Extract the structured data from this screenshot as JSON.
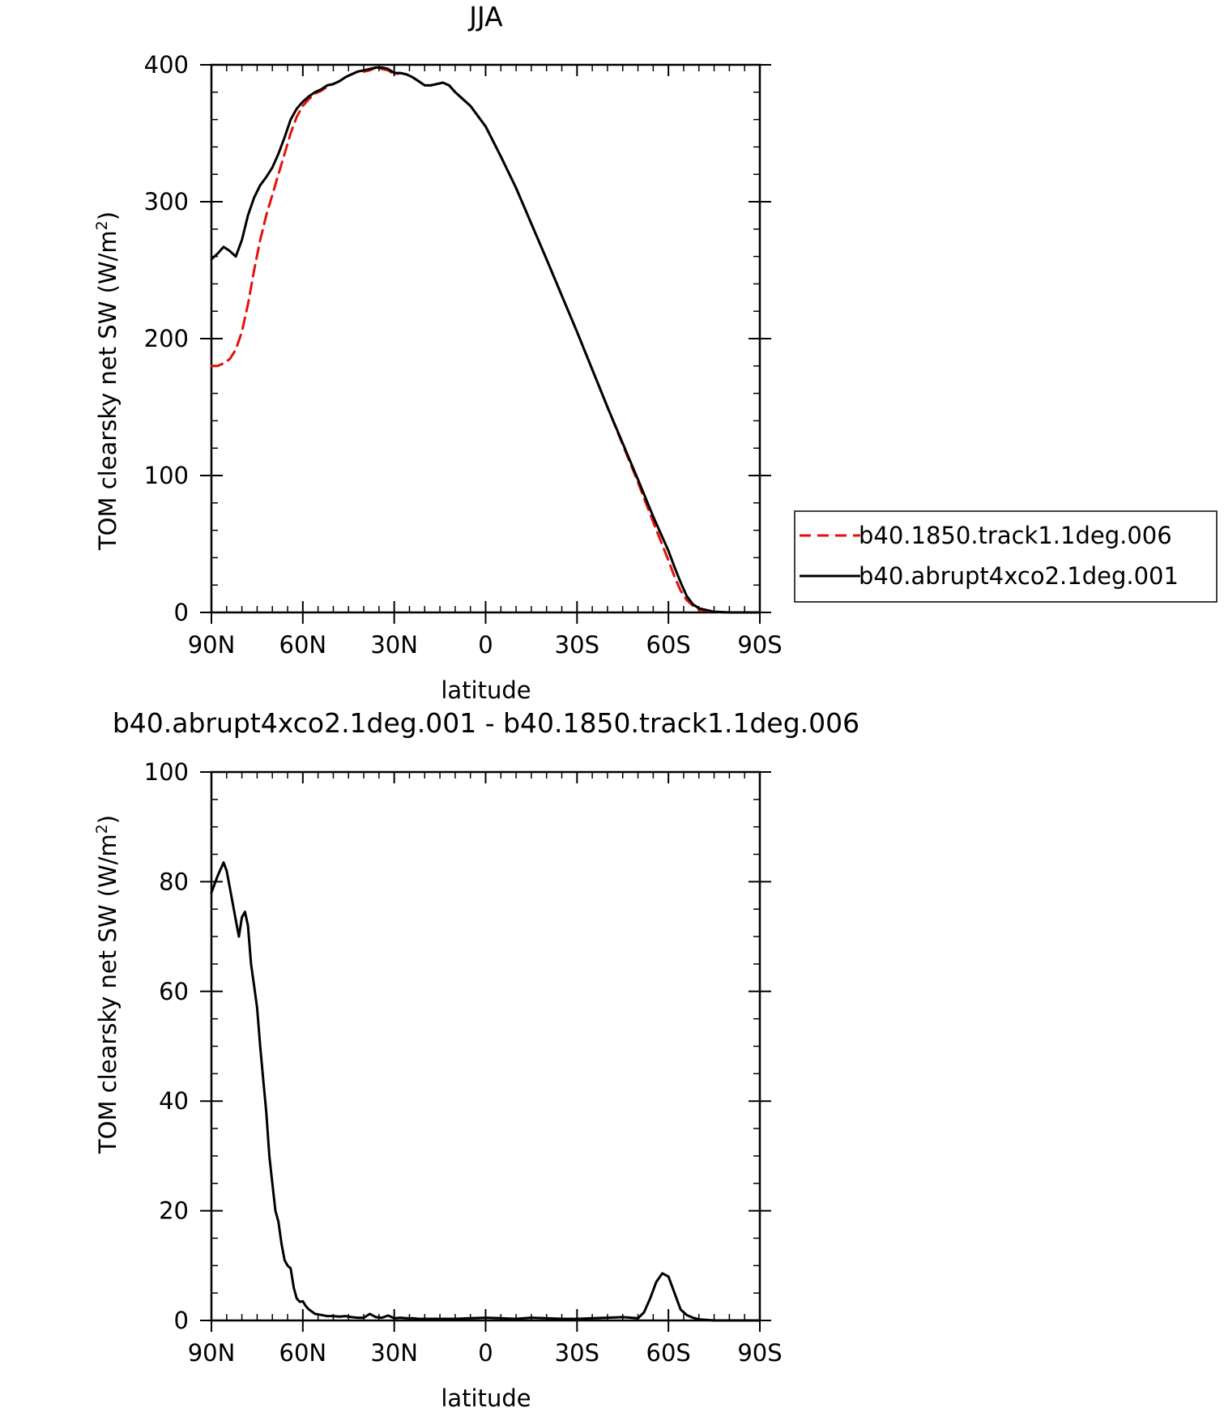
{
  "chart_data": [
    {
      "type": "line",
      "title": "JJA",
      "xlabel": "latitude",
      "ylabel_prefix": "TOM clearsky net SW (W/m",
      "ylabel_sup": "2",
      "ylabel_suffix": ")",
      "xlim": [
        90,
        -90
      ],
      "ylim": [
        0,
        400
      ],
      "xticks": [
        90,
        60,
        30,
        0,
        -30,
        -60,
        -90
      ],
      "xtick_labels": [
        "90N",
        "60N",
        "30N",
        "0",
        "30S",
        "60S",
        "90S"
      ],
      "yticks": [
        0,
        100,
        200,
        300,
        400
      ],
      "ytick_labels": [
        "0",
        "100",
        "200",
        "300",
        "400"
      ],
      "legend": "right, outside plot",
      "grid": false,
      "series": [
        {
          "name": "b40.1850.track1.1deg.006",
          "color": "#e3120b",
          "style": "dashed",
          "x": [
            90,
            88,
            86,
            84,
            82,
            80,
            78,
            76,
            74,
            72,
            70,
            68,
            66,
            64,
            62,
            60,
            58,
            56,
            54,
            52,
            50,
            48,
            46,
            44,
            42,
            40,
            38,
            36,
            34,
            32,
            30,
            28,
            26,
            24,
            22,
            20,
            18,
            16,
            14,
            12,
            10,
            5,
            0,
            -5,
            -10,
            -20,
            -30,
            -40,
            -50,
            -55,
            -60,
            -62,
            -64,
            -66,
            -68,
            -70,
            -75,
            -80,
            -85,
            -90
          ],
          "y": [
            180,
            180,
            182,
            185,
            192,
            205,
            225,
            250,
            272,
            290,
            305,
            320,
            335,
            350,
            362,
            370,
            375,
            379,
            381,
            384,
            386,
            388,
            391,
            393,
            395,
            395,
            396,
            398,
            397,
            396,
            393,
            394,
            393,
            391,
            388,
            385,
            385,
            386,
            387,
            385,
            380,
            370,
            355,
            333,
            310,
            258,
            205,
            150,
            95,
            66,
            38,
            26,
            16,
            9,
            5,
            2,
            0.5,
            0,
            0,
            0
          ]
        },
        {
          "name": "b40.abrupt4xco2.1deg.001",
          "color": "#000000",
          "style": "solid",
          "x": [
            90,
            88,
            86,
            84,
            82,
            80,
            78,
            76,
            74,
            72,
            70,
            68,
            66,
            64,
            62,
            60,
            58,
            56,
            54,
            52,
            50,
            48,
            46,
            44,
            42,
            40,
            38,
            36,
            34,
            32,
            30,
            28,
            26,
            24,
            22,
            20,
            18,
            16,
            14,
            12,
            10,
            5,
            0,
            -5,
            -10,
            -20,
            -30,
            -40,
            -50,
            -55,
            -60,
            -62,
            -64,
            -66,
            -68,
            -70,
            -75,
            -80,
            -85,
            -90
          ],
          "y": [
            258,
            262,
            267,
            264,
            260,
            272,
            290,
            303,
            312,
            318,
            325,
            335,
            347,
            360,
            368,
            373,
            377,
            380,
            382,
            385,
            386,
            388,
            391,
            393,
            395,
            396,
            397,
            398,
            398,
            397,
            394,
            394,
            393,
            391,
            388,
            385,
            385,
            386,
            387,
            385,
            380,
            370,
            355,
            333,
            310,
            258,
            205,
            150,
            97,
            70,
            45,
            33,
            22,
            12,
            6,
            3,
            0.5,
            0,
            0,
            0
          ]
        }
      ]
    },
    {
      "type": "line",
      "title": "b40.abrupt4xco2.1deg.001 - b40.1850.track1.1deg.006",
      "xlabel": "latitude",
      "ylabel_prefix": "TOM clearsky net SW (W/m",
      "ylabel_sup": "2",
      "ylabel_suffix": ")",
      "xlim": [
        90,
        -90
      ],
      "ylim": [
        0,
        100
      ],
      "xticks": [
        90,
        60,
        30,
        0,
        -30,
        -60,
        -90
      ],
      "xtick_labels": [
        "90N",
        "60N",
        "30N",
        "0",
        "30S",
        "60S",
        "90S"
      ],
      "yticks": [
        0,
        20,
        40,
        60,
        80,
        100
      ],
      "ytick_labels": [
        "0",
        "20",
        "40",
        "60",
        "80",
        "100"
      ],
      "grid": false,
      "series": [
        {
          "color": "#000000",
          "style": "solid",
          "x": [
            90,
            88,
            86,
            85,
            84,
            82,
            81,
            80,
            79,
            78,
            77,
            76,
            75,
            74,
            73,
            72,
            71,
            70,
            69,
            68,
            67,
            66,
            65,
            64,
            63,
            62,
            61,
            60,
            59,
            58,
            56,
            54,
            52,
            50,
            48,
            46,
            44,
            42,
            40,
            38,
            36,
            34,
            32,
            30,
            28,
            26,
            24,
            22,
            20,
            15,
            10,
            5,
            0,
            -5,
            -10,
            -15,
            -20,
            -25,
            -30,
            -35,
            -40,
            -45,
            -50,
            -52,
            -54,
            -56,
            -58,
            -60,
            -62,
            -64,
            -66,
            -68,
            -70,
            -75,
            -80,
            -85,
            -90
          ],
          "y": [
            78,
            81,
            83.5,
            82,
            79,
            73,
            70,
            73.5,
            74.5,
            72,
            65,
            61,
            57,
            50,
            44,
            38,
            30,
            25,
            20,
            18,
            14,
            11,
            10,
            9.5,
            6,
            4,
            3.4,
            3.5,
            2.6,
            2,
            1.2,
            1,
            0.8,
            0.8,
            0.7,
            0.8,
            0.6,
            0.5,
            0.5,
            1.2,
            0.6,
            0.5,
            0.9,
            0.4,
            0.5,
            0.4,
            0.4,
            0.3,
            0.3,
            0.3,
            0.3,
            0.4,
            0.5,
            0.4,
            0.3,
            0.5,
            0.4,
            0.3,
            0.3,
            0.4,
            0.5,
            0.6,
            0.4,
            1.5,
            4,
            7,
            8.6,
            8,
            5,
            2,
            1,
            0.5,
            0.2,
            0,
            0,
            0,
            0
          ]
        }
      ]
    }
  ],
  "legend": {
    "entries": [
      "b40.1850.track1.1deg.006",
      "b40.abrupt4xco2.1deg.001"
    ]
  }
}
